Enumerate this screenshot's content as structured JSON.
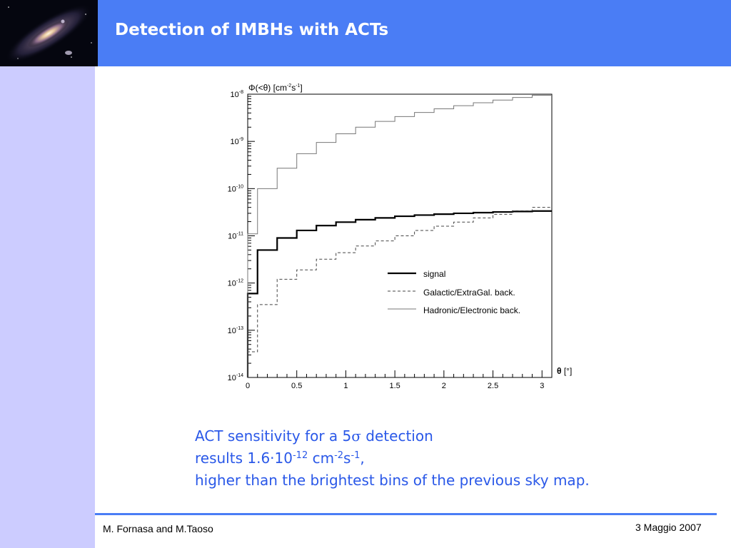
{
  "slide": {
    "title": "Detection of IMBHs with ACTs",
    "footer_author": "M. Fornasa and M.Taoso",
    "footer_date": "3 Maggio 2007",
    "colors": {
      "header": "#4a7df5",
      "sidebar": "#ccccff",
      "caption": "#2a58e8"
    },
    "logo_icon": "galaxy-icon"
  },
  "caption": {
    "line1_prefix": "ACT sensitivity for a 5",
    "line1_symbol": "σ",
    "line1_suffix": " detection",
    "line2_prefix": "results 1.6·10",
    "line2_exp1": "-12",
    "line2_mid1": " cm",
    "line2_exp2": "-2",
    "line2_mid2": "s",
    "line2_exp3": "-1",
    "line2_suffix": ",",
    "line3": "higher than the brightest bins of the previous sky map."
  },
  "chart_data": {
    "type": "line",
    "step": true,
    "ylabel_parts": [
      "Φ",
      "(<",
      "θ",
      ") [cm",
      "-2",
      "s",
      "-1",
      "]"
    ],
    "xlabel_parts": [
      "θ",
      " [°]"
    ],
    "xlim": [
      0,
      3.1
    ],
    "ylim": [
      1e-14,
      1e-08
    ],
    "yscale": "log",
    "grid": false,
    "legend_position": "right, below the curves",
    "x_ticks": [
      "0",
      "0.5",
      "1",
      "1.5",
      "2",
      "2.5",
      "3"
    ],
    "y_ticks": [
      {
        "base": "10",
        "exp": "-8"
      },
      {
        "base": "10",
        "exp": "-9"
      },
      {
        "base": "10",
        "exp": "-10"
      },
      {
        "base": "10",
        "exp": "-11"
      },
      {
        "base": "10",
        "exp": "-12"
      },
      {
        "base": "10",
        "exp": "-13"
      },
      {
        "base": "10",
        "exp": "-14"
      }
    ],
    "bin_edges": [
      0,
      0.1,
      0.3,
      0.5,
      0.7,
      0.9,
      1.1,
      1.3,
      1.5,
      1.7,
      1.9,
      2.1,
      2.3,
      2.5,
      2.7,
      2.9,
      3.1
    ],
    "series": [
      {
        "name": "signal",
        "style": "solid-thick",
        "values": [
          6e-13,
          5e-12,
          9e-12,
          1.3e-11,
          1.65e-11,
          1.95e-11,
          2.2e-11,
          2.4e-11,
          2.6e-11,
          2.75e-11,
          2.88e-11,
          3e-11,
          3.1e-11,
          3.2e-11,
          3.28e-11,
          3.35e-11
        ]
      },
      {
        "name": "Galactic/ExtraGal. back.",
        "style": "dashed",
        "values": [
          3.5e-14,
          3.5e-13,
          1.2e-12,
          1.9e-12,
          3.2e-12,
          4.4e-12,
          6.1e-12,
          7.8e-12,
          1e-11,
          1.3e-11,
          1.6e-11,
          1.95e-11,
          2.4e-11,
          2.85e-11,
          3.4e-11,
          4e-11
        ]
      },
      {
        "name": "Hadronic/Electronic back.",
        "style": "solid-thin",
        "values": [
          1.1e-11,
          1e-10,
          2.7e-10,
          5.5e-10,
          9.5e-10,
          1.45e-09,
          2e-09,
          2.65e-09,
          3.35e-09,
          4.1e-09,
          4.9e-09,
          5.7e-09,
          6.6e-09,
          7.5e-09,
          8.5e-09,
          9.5e-09
        ]
      }
    ]
  }
}
